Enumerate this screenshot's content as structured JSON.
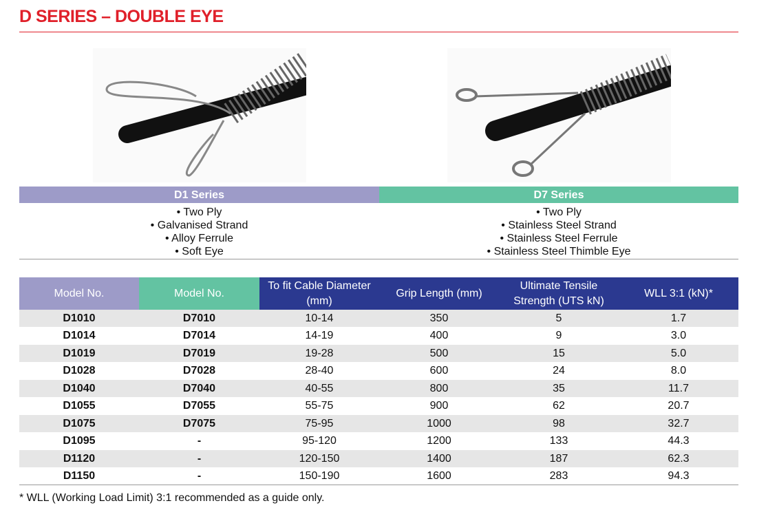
{
  "header": {
    "title": "D SERIES – DOUBLE EYE"
  },
  "products": [
    {
      "name": "D1 Series",
      "features": [
        "• Two Ply",
        "• Galvanised Strand",
        "• Alloy Ferrule",
        "• Soft Eye"
      ]
    },
    {
      "name": "D7 Series",
      "features": [
        "• Two Ply",
        "• Stainless Steel Strand",
        "• Stainless Steel Ferrule",
        "• Stainless Steel Thimble Eye"
      ]
    }
  ],
  "table": {
    "header": [
      "Model No.",
      "Model No.",
      "To fit Cable Diameter (mm)",
      "Grip Length (mm)",
      "Ultimate Tensile Strength (UTS kN)",
      "WLL 3:1 (kN)*"
    ],
    "rows": [
      [
        "D1010",
        "D7010",
        "10-14",
        "350",
        "5",
        "1.7"
      ],
      [
        "D1014",
        "D7014",
        "14-19",
        "400",
        "9",
        "3.0"
      ],
      [
        "D1019",
        "D7019",
        "19-28",
        "500",
        "15",
        "5.0"
      ],
      [
        "D1028",
        "D7028",
        "28-40",
        "600",
        "24",
        "8.0"
      ],
      [
        "D1040",
        "D7040",
        "40-55",
        "800",
        "35",
        "11.7"
      ],
      [
        "D1055",
        "D7055",
        "55-75",
        "900",
        "62",
        "20.7"
      ],
      [
        "D1075",
        "D7075",
        "75-95",
        "1000",
        "98",
        "32.7"
      ],
      [
        "D1095",
        "-",
        "95-120",
        "1200",
        "133",
        "44.3"
      ],
      [
        "D1120",
        "-",
        "120-150",
        "1400",
        "187",
        "62.3"
      ],
      [
        "D1150",
        "-",
        "150-190",
        "1600",
        "283",
        "94.3"
      ]
    ]
  },
  "footnote": "* WLL (Working Load Limit) 3:1 recommended as a guide only."
}
